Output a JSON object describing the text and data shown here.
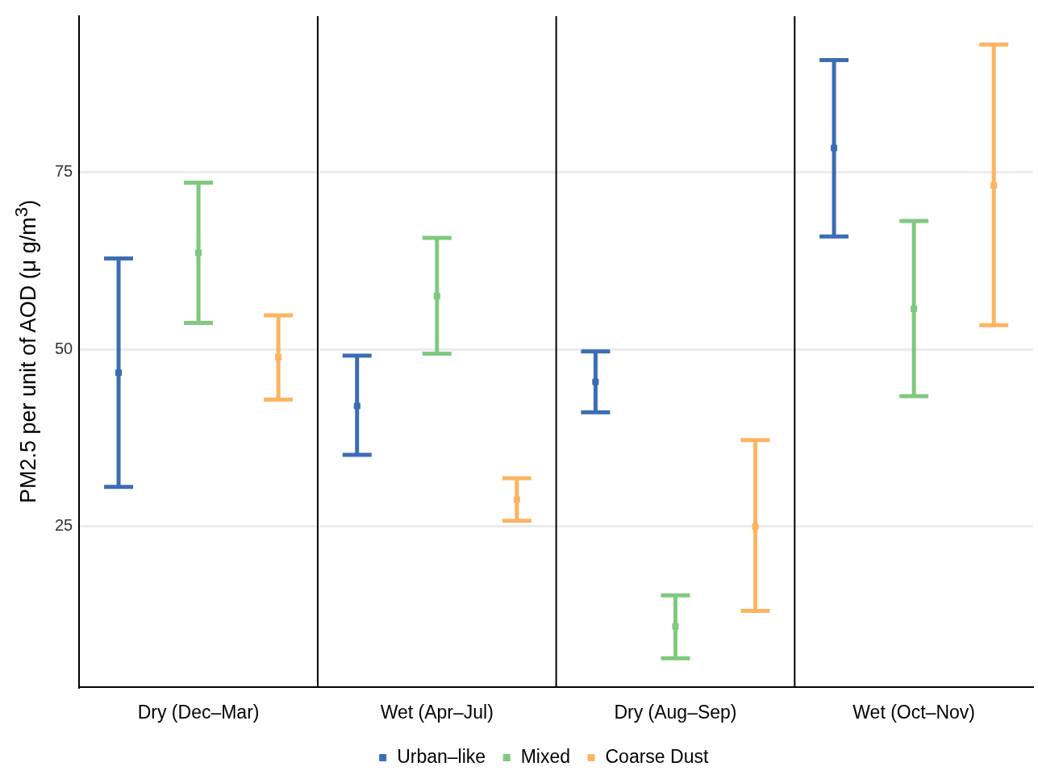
{
  "chart_data": {
    "type": "scatter",
    "ylabel": "PM2.5 per unit of AOD (μ g/m$^{3}$)",
    "categories": [
      "Dry (Dec–Mar)",
      "Wet (Apr–Jul)",
      "Dry (Aug–Sep)",
      "Wet (Oct–Nov)"
    ],
    "ylim": [
      2.3,
      97
    ],
    "yticks": [
      25,
      50,
      75
    ],
    "grid": true,
    "legend": "bottom",
    "marker": "square",
    "series": [
      {
        "name": "Urban–like",
        "color": "#3b6db3",
        "values": [
          46.7,
          42.0,
          45.4,
          78.4
        ],
        "errors": [
          [
            30.6,
            62.8
          ],
          [
            35.1,
            49.1
          ],
          [
            41.1,
            49.7
          ],
          [
            65.9,
            90.8
          ]
        ]
      },
      {
        "name": "Mixed",
        "color": "#7fc97f",
        "values": [
          63.6,
          57.5,
          10.9,
          55.7
        ],
        "errors": [
          [
            53.7,
            73.5
          ],
          [
            49.4,
            65.7
          ],
          [
            6.4,
            15.3
          ],
          [
            43.4,
            68.1
          ]
        ]
      },
      {
        "name": "Coarse Dust",
        "color": "#fdb462",
        "values": [
          48.9,
          28.8,
          25.0,
          73.1
        ],
        "errors": [
          [
            42.9,
            54.8
          ],
          [
            25.8,
            31.8
          ],
          [
            13.1,
            37.2
          ],
          [
            53.4,
            93.0
          ]
        ]
      }
    ]
  }
}
